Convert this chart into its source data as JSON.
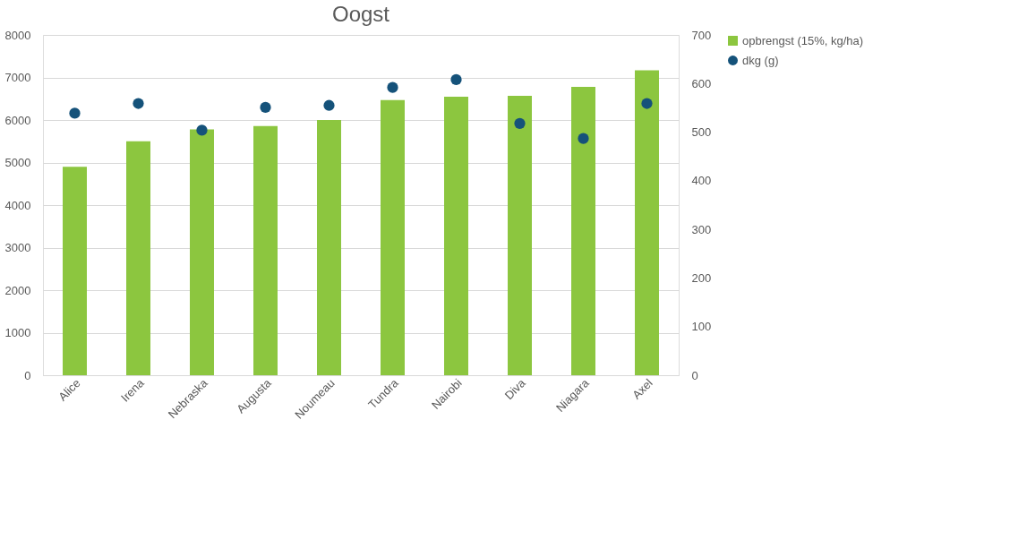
{
  "chart_data": {
    "type": "bar",
    "title": "Oogst",
    "categories": [
      "Alice",
      "Irena",
      "Nebraska",
      "Augusta",
      "Noumeau",
      "Tundra",
      "Nairobi",
      "Diva",
      "Niagara",
      "Axel"
    ],
    "series": [
      {
        "name": "opbrengst (15%, kg/ha)",
        "color": "#8cc63f",
        "values": [
          4900,
          5500,
          5780,
          5860,
          6000,
          6470,
          6550,
          6570,
          6780,
          7170
        ]
      },
      {
        "name": "dkg (g)",
        "type": "scatter",
        "axis": "y2",
        "color": "#15527a",
        "values": [
          539,
          559,
          504,
          551,
          555,
          592,
          608,
          518,
          487,
          559
        ]
      }
    ],
    "ylim": [
      0,
      8000
    ],
    "yticks": [
      0,
      1000,
      2000,
      3000,
      4000,
      5000,
      6000,
      7000,
      8000
    ],
    "y2lim": [
      0,
      700
    ],
    "y2ticks": [
      0,
      100,
      200,
      300,
      400,
      500,
      600,
      700
    ],
    "grid": "y",
    "legend": "right",
    "marker": "circle"
  }
}
